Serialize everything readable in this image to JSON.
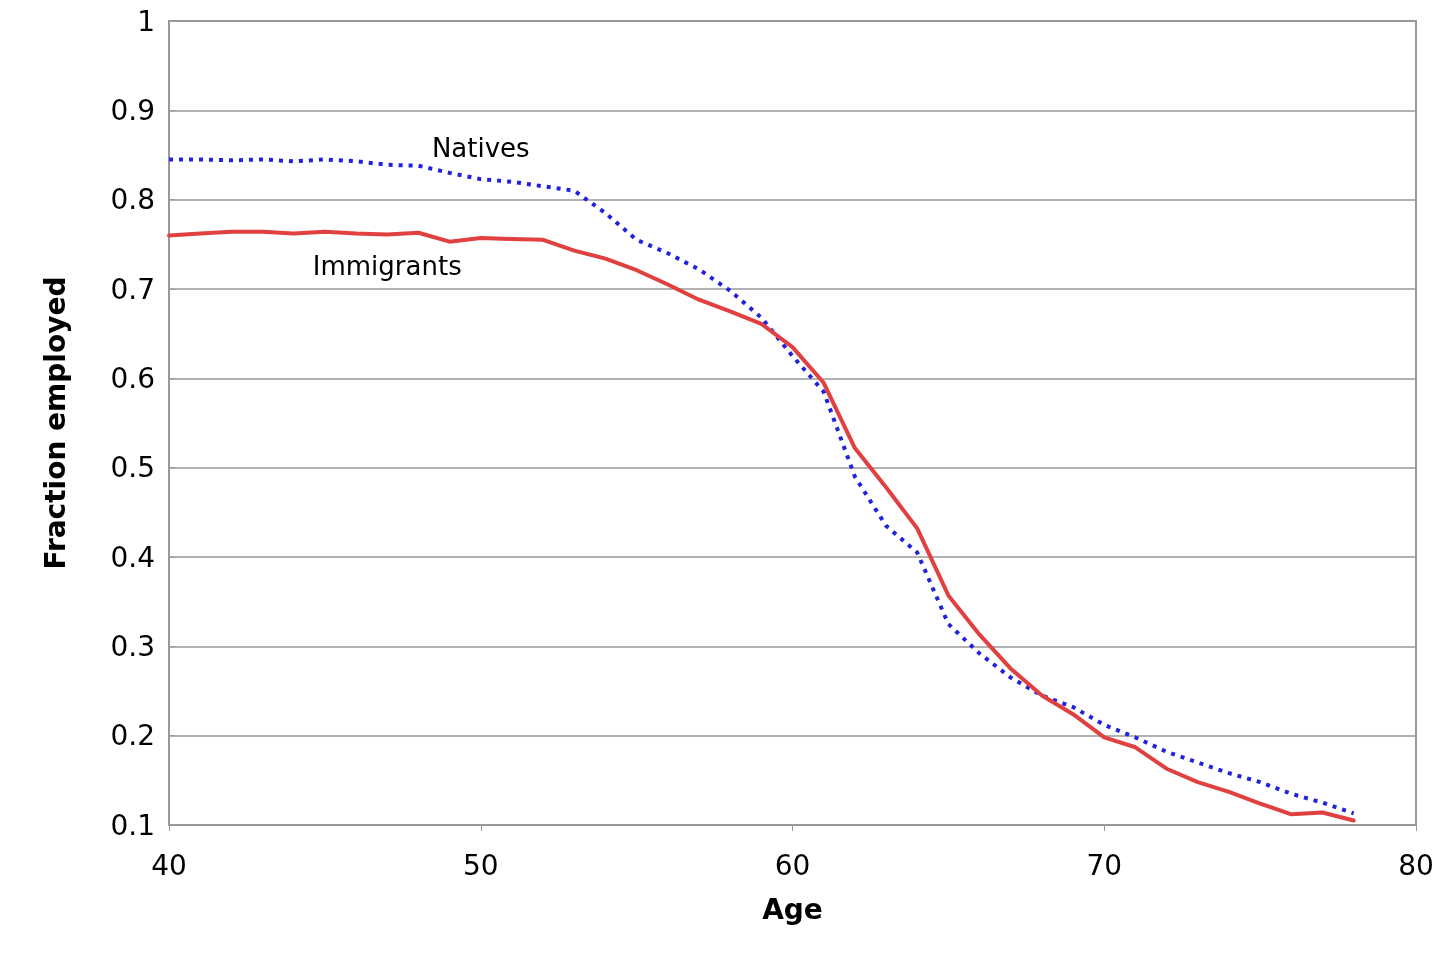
{
  "chart_data": {
    "type": "line",
    "xlabel": "Age",
    "ylabel": "Fraction employed",
    "xlim": [
      40,
      80
    ],
    "xticks": [
      40,
      50,
      60,
      70,
      80
    ],
    "ylim": [
      0.1,
      1
    ],
    "yticks": [
      0.1,
      0.2,
      0.3,
      0.4,
      0.5,
      0.6,
      0.7,
      0.8,
      0.9,
      1
    ],
    "grid": "y",
    "legend": false,
    "marker": "none",
    "x": [
      40,
      41,
      42,
      43,
      44,
      45,
      46,
      47,
      48,
      49,
      50,
      51,
      52,
      53,
      54,
      55,
      56,
      57,
      58,
      59,
      60,
      61,
      62,
      63,
      64,
      65,
      66,
      67,
      68,
      69,
      70,
      71,
      72,
      73,
      74,
      75,
      76,
      77,
      78
    ],
    "series": [
      {
        "name": "Natives",
        "color": "#2222dd",
        "line_style": "dotted",
        "values": [
          0.845,
          0.845,
          0.844,
          0.845,
          0.843,
          0.845,
          0.843,
          0.839,
          0.838,
          0.83,
          0.823,
          0.82,
          0.815,
          0.81,
          0.785,
          0.755,
          0.74,
          0.722,
          0.698,
          0.668,
          0.625,
          0.585,
          0.49,
          0.435,
          0.405,
          0.325,
          0.292,
          0.265,
          0.245,
          0.232,
          0.212,
          0.198,
          0.182,
          0.17,
          0.158,
          0.148,
          0.135,
          0.125,
          0.113
        ]
      },
      {
        "name": "Immigrants",
        "color": "#e04040",
        "line_style": "solid",
        "values": [
          0.76,
          0.762,
          0.764,
          0.764,
          0.762,
          0.764,
          0.762,
          0.761,
          0.763,
          0.753,
          0.757,
          0.756,
          0.755,
          0.743,
          0.734,
          0.721,
          0.705,
          0.688,
          0.675,
          0.661,
          0.635,
          0.595,
          0.522,
          0.478,
          0.432,
          0.357,
          0.313,
          0.275,
          0.245,
          0.224,
          0.198,
          0.187,
          0.163,
          0.148,
          0.137,
          0.124,
          0.112,
          0.114,
          0.105
        ]
      }
    ]
  }
}
